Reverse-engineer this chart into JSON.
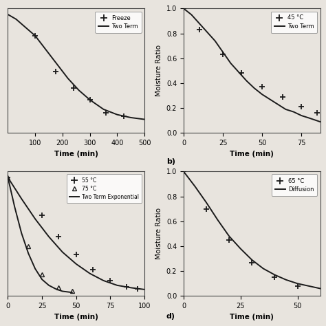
{
  "background": "#e8e4de",
  "line_color": "#1a1a1a",
  "marker_color": "#1a1a1a",
  "panel_a": {
    "xlabel": "Time (min)",
    "xlim": [
      0,
      500
    ],
    "ylim": [
      0,
      1.05
    ],
    "freeze_x": [
      100,
      175,
      240,
      300,
      360,
      425
    ],
    "freeze_y": [
      0.82,
      0.52,
      0.38,
      0.28,
      0.17,
      0.14
    ],
    "curve_x": [
      0,
      30,
      60,
      100,
      140,
      180,
      220,
      260,
      300,
      350,
      400,
      450,
      500
    ],
    "curve_y": [
      1.0,
      0.96,
      0.9,
      0.82,
      0.7,
      0.58,
      0.46,
      0.36,
      0.28,
      0.2,
      0.155,
      0.13,
      0.115
    ],
    "legend1": "Freeze",
    "legend2": "Two Term",
    "xticks": [
      100,
      200,
      300,
      400,
      500
    ]
  },
  "panel_b": {
    "xlabel": "Time (min)",
    "ylabel": "Moisture Ratio",
    "xlim": [
      0,
      87
    ],
    "ylim": [
      0.0,
      1.0
    ],
    "data_x": [
      0,
      10,
      25,
      37,
      50,
      63,
      75,
      85
    ],
    "data_y": [
      1.0,
      0.83,
      0.63,
      0.48,
      0.37,
      0.29,
      0.21,
      0.16
    ],
    "curve_x": [
      0,
      5,
      10,
      15,
      20,
      25,
      30,
      35,
      40,
      45,
      50,
      55,
      60,
      65,
      70,
      75,
      80,
      87
    ],
    "curve_y": [
      1.0,
      0.95,
      0.88,
      0.81,
      0.74,
      0.65,
      0.56,
      0.49,
      0.42,
      0.36,
      0.31,
      0.27,
      0.23,
      0.19,
      0.17,
      0.14,
      0.12,
      0.09
    ],
    "legend1": "45 °C",
    "legend2": "Two Term",
    "xticks": [
      0,
      25,
      50,
      75
    ],
    "yticks": [
      0.0,
      0.2,
      0.4,
      0.6,
      0.8,
      1.0
    ]
  },
  "panel_c": {
    "xlabel": "Time (min)",
    "xlim": [
      0,
      100
    ],
    "ylim": [
      0,
      1.05
    ],
    "data55_x": [
      0,
      25,
      37,
      50,
      62,
      75,
      87,
      95
    ],
    "data55_y": [
      1.0,
      0.68,
      0.5,
      0.35,
      0.22,
      0.13,
      0.08,
      0.06
    ],
    "data75_x": [
      0,
      15,
      25,
      37,
      47
    ],
    "data75_y": [
      1.0,
      0.42,
      0.18,
      0.07,
      0.04
    ],
    "curve55_x": [
      0,
      10,
      20,
      30,
      40,
      50,
      60,
      70,
      80,
      90,
      100
    ],
    "curve55_y": [
      1.0,
      0.82,
      0.65,
      0.5,
      0.37,
      0.27,
      0.19,
      0.13,
      0.09,
      0.07,
      0.055
    ],
    "curve75_x": [
      0,
      5,
      10,
      15,
      20,
      25,
      30,
      35,
      40,
      47
    ],
    "curve75_y": [
      1.0,
      0.75,
      0.53,
      0.36,
      0.23,
      0.14,
      0.09,
      0.06,
      0.04,
      0.03
    ],
    "legend1": "55 °C",
    "legend2": "75 °C",
    "legend3": "Two Term Exponential",
    "xticks": [
      0,
      25,
      50,
      75,
      100
    ]
  },
  "panel_d": {
    "xlabel": "Time (min)",
    "ylabel": "Moisture Ratio",
    "xlim": [
      0,
      60
    ],
    "ylim": [
      0.0,
      1.0
    ],
    "data_x": [
      0,
      10,
      20,
      30,
      40,
      50
    ],
    "data_y": [
      1.0,
      0.7,
      0.45,
      0.27,
      0.15,
      0.08
    ],
    "curve_x": [
      0,
      5,
      10,
      15,
      20,
      25,
      30,
      35,
      40,
      45,
      50,
      55,
      60
    ],
    "curve_y": [
      1.0,
      0.88,
      0.75,
      0.61,
      0.48,
      0.38,
      0.29,
      0.22,
      0.17,
      0.13,
      0.1,
      0.08,
      0.06
    ],
    "legend1": "65 °C",
    "legend2": "Diffusion",
    "xticks": [
      0,
      25,
      50
    ],
    "yticks": [
      0.0,
      0.2,
      0.4,
      0.6,
      0.8,
      1.0
    ]
  }
}
